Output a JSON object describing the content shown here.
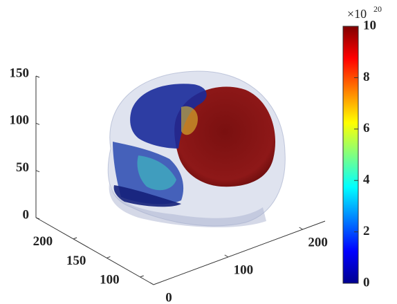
{
  "chart_data": {
    "type": "volume",
    "xlim": [
      0,
      230
    ],
    "xticks": [
      0,
      100,
      200
    ],
    "ylim": [
      80,
      256
    ],
    "yticks": [
      100,
      150,
      200
    ],
    "zlim": [
      0,
      150
    ],
    "zticks": [
      0,
      50,
      100,
      150
    ],
    "colormap": "jet",
    "colorbar": {
      "lim": [
        0,
        10
      ],
      "ticks": [
        0,
        2,
        4,
        6,
        8,
        10
      ],
      "multiplier": "×10",
      "exponent": "20"
    }
  }
}
